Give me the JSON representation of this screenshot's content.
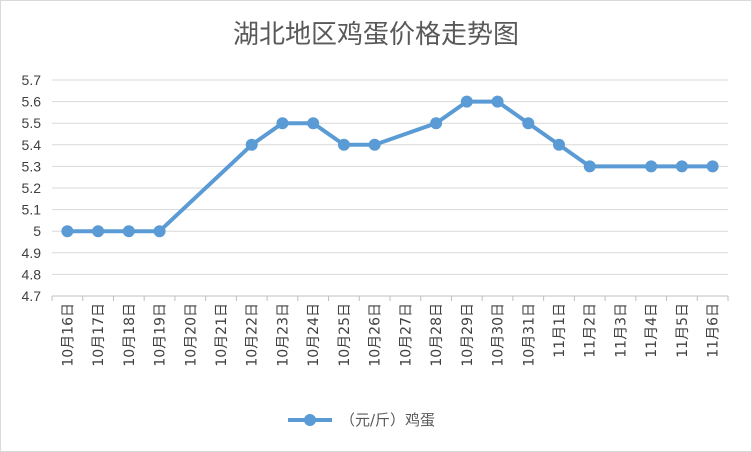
{
  "chart_data": {
    "type": "line",
    "title": "湖北地区鸡蛋价格走势图",
    "xlabel": "",
    "ylabel": "",
    "ylim": [
      4.7,
      5.7
    ],
    "yticks": [
      "5.7",
      "5.6",
      "5.5",
      "5.4",
      "5.3",
      "5.2",
      "5.1",
      "5",
      "4.9",
      "4.8",
      "4.7"
    ],
    "categories": [
      "10月16日",
      "10月17日",
      "10月18日",
      "10月19日",
      "10月20日",
      "10月21日",
      "10月22日",
      "10月23日",
      "10月24日",
      "10月25日",
      "10月26日",
      "10月27日",
      "10月28日",
      "10月29日",
      "10月30日",
      "10月31日",
      "11月1日",
      "11月2日",
      "11月3日",
      "11月4日",
      "11月5日",
      "11月6日"
    ],
    "series": [
      {
        "name": "（元/斤）鸡蛋",
        "color": "#5b9bd5",
        "values": [
          5.0,
          5.0,
          5.0,
          5.0,
          null,
          null,
          5.4,
          5.5,
          5.5,
          5.4,
          5.4,
          null,
          5.5,
          5.6,
          5.6,
          5.5,
          5.4,
          5.3,
          null,
          5.3,
          5.3,
          5.3
        ]
      }
    ],
    "grid": true,
    "legend_position": "bottom"
  }
}
